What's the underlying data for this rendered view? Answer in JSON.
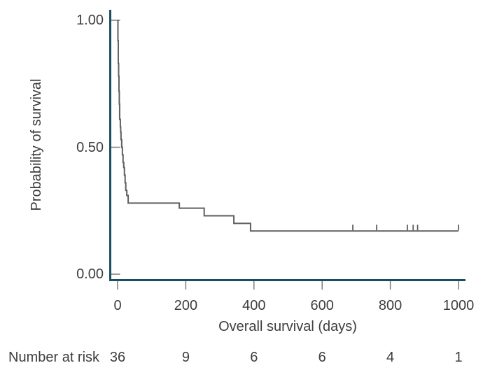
{
  "colors": {
    "axis": "#1c4e63",
    "tick": "#7d7d7f",
    "curve": "#5f5f61",
    "text": "#3d3d3f",
    "background": "#ffffff"
  },
  "chart_data": {
    "type": "line",
    "variant": "kaplan_meier_step_curve",
    "title": "",
    "xlabel": "Overall survival (days)",
    "ylabel": "Probability of survival",
    "xlim": [
      0,
      1000
    ],
    "ylim": [
      0.0,
      1.0
    ],
    "grid": false,
    "legend": null,
    "x_ticks": [
      0,
      200,
      400,
      600,
      800,
      1000
    ],
    "x_tick_labels": [
      "0",
      "200",
      "400",
      "600",
      "800",
      "1000"
    ],
    "y_ticks": [
      1.0,
      0.5,
      0.0
    ],
    "y_tick_labels": [
      "1.00",
      "0.50",
      "0.00"
    ],
    "series": [
      {
        "name": "overall-survival",
        "steps": [
          [
            0,
            1.0
          ],
          [
            1,
            0.92
          ],
          [
            2,
            0.83
          ],
          [
            3,
            0.78
          ],
          [
            4,
            0.72
          ],
          [
            5,
            0.67
          ],
          [
            6,
            0.61
          ],
          [
            8,
            0.58
          ],
          [
            9,
            0.56
          ],
          [
            10,
            0.53
          ],
          [
            12,
            0.5
          ],
          [
            14,
            0.47
          ],
          [
            16,
            0.44
          ],
          [
            18,
            0.42
          ],
          [
            20,
            0.39
          ],
          [
            22,
            0.36
          ],
          [
            24,
            0.33
          ],
          [
            27,
            0.31
          ],
          [
            31,
            0.28
          ],
          [
            181,
            0.26
          ],
          [
            254,
            0.23
          ],
          [
            341,
            0.2
          ],
          [
            390,
            0.17
          ],
          [
            1000,
            0.17
          ]
        ],
        "censor_times": [
          690,
          760,
          850,
          867,
          880,
          1000
        ],
        "censor_level": 0.17
      }
    ],
    "number_at_risk": {
      "label": "Number at risk",
      "times": [
        0,
        200,
        400,
        600,
        800,
        1000
      ],
      "values": [
        "36",
        "9",
        "6",
        "6",
        "4",
        "1"
      ]
    }
  }
}
